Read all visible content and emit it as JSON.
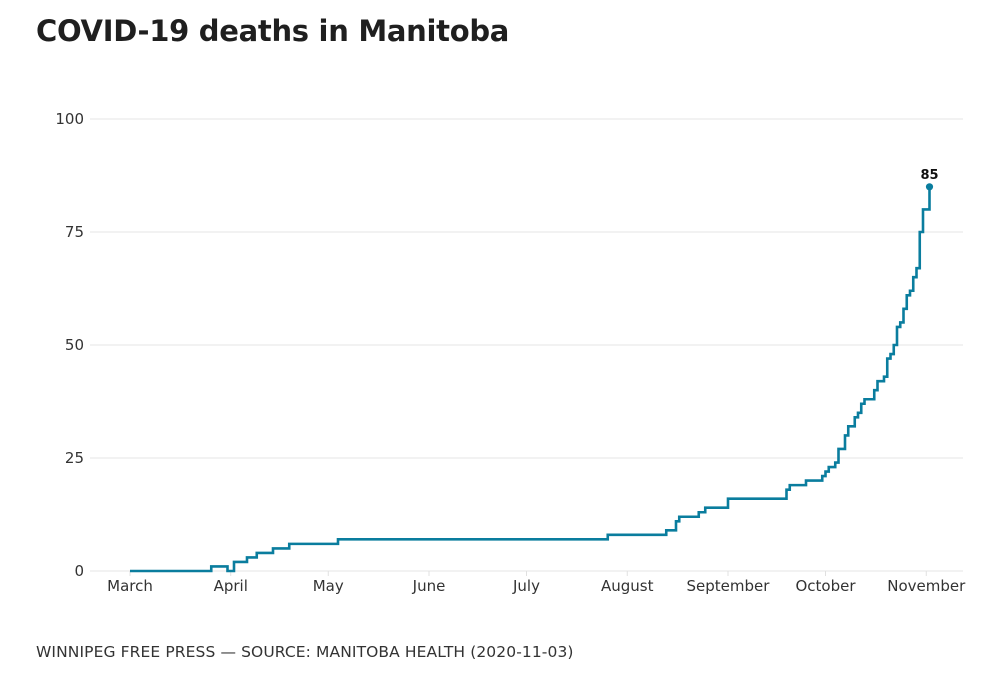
{
  "title": "COVID-19 deaths in Manitoba",
  "source": "WINNIPEG FREE PRESS — SOURCE: MANITOBA HEALTH (2020-11-03)",
  "colors": {
    "line": "#0a7d9e",
    "grid": "#e6e6e6",
    "text": "#333333"
  },
  "chart_data": {
    "type": "line",
    "step": true,
    "title": "COVID-19 deaths in Manitoba",
    "xlabel": "",
    "ylabel": "",
    "ylim": [
      0,
      100
    ],
    "xlim": [
      "2020-03-01",
      "2020-11-09"
    ],
    "grid": true,
    "y_ticks": [
      0,
      25,
      50,
      75,
      100
    ],
    "x_ticks": [
      {
        "date": "2020-03-01",
        "label": "March"
      },
      {
        "date": "2020-04-01",
        "label": "April"
      },
      {
        "date": "2020-05-01",
        "label": "May"
      },
      {
        "date": "2020-06-01",
        "label": "June"
      },
      {
        "date": "2020-07-01",
        "label": "July"
      },
      {
        "date": "2020-08-01",
        "label": "August"
      },
      {
        "date": "2020-09-01",
        "label": "September"
      },
      {
        "date": "2020-10-01",
        "label": "October"
      },
      {
        "date": "2020-11-01",
        "label": "November"
      }
    ],
    "series": [
      {
        "name": "Deaths",
        "points": [
          [
            "2020-03-01",
            0
          ],
          [
            "2020-03-26",
            1
          ],
          [
            "2020-03-31",
            0
          ],
          [
            "2020-04-02",
            2
          ],
          [
            "2020-04-06",
            3
          ],
          [
            "2020-04-09",
            4
          ],
          [
            "2020-04-14",
            5
          ],
          [
            "2020-04-19",
            6
          ],
          [
            "2020-05-04",
            7
          ],
          [
            "2020-07-26",
            8
          ],
          [
            "2020-08-13",
            9
          ],
          [
            "2020-08-16",
            11
          ],
          [
            "2020-08-17",
            12
          ],
          [
            "2020-08-23",
            13
          ],
          [
            "2020-08-25",
            14
          ],
          [
            "2020-09-01",
            16
          ],
          [
            "2020-09-19",
            18
          ],
          [
            "2020-09-20",
            19
          ],
          [
            "2020-09-25",
            20
          ],
          [
            "2020-09-30",
            21
          ],
          [
            "2020-10-01",
            22
          ],
          [
            "2020-10-02",
            23
          ],
          [
            "2020-10-04",
            24
          ],
          [
            "2020-10-05",
            27
          ],
          [
            "2020-10-07",
            30
          ],
          [
            "2020-10-08",
            32
          ],
          [
            "2020-10-10",
            34
          ],
          [
            "2020-10-11",
            35
          ],
          [
            "2020-10-12",
            37
          ],
          [
            "2020-10-13",
            38
          ],
          [
            "2020-10-16",
            40
          ],
          [
            "2020-10-17",
            42
          ],
          [
            "2020-10-19",
            43
          ],
          [
            "2020-10-20",
            47
          ],
          [
            "2020-10-21",
            48
          ],
          [
            "2020-10-22",
            50
          ],
          [
            "2020-10-23",
            54
          ],
          [
            "2020-10-24",
            55
          ],
          [
            "2020-10-25",
            58
          ],
          [
            "2020-10-26",
            61
          ],
          [
            "2020-10-27",
            62
          ],
          [
            "2020-10-28",
            65
          ],
          [
            "2020-10-29",
            67
          ],
          [
            "2020-10-30",
            75
          ],
          [
            "2020-10-31",
            80
          ],
          [
            "2020-11-02",
            85
          ]
        ]
      }
    ],
    "annotations": [
      {
        "date": "2020-11-02",
        "value": 85,
        "text": "85"
      }
    ]
  }
}
